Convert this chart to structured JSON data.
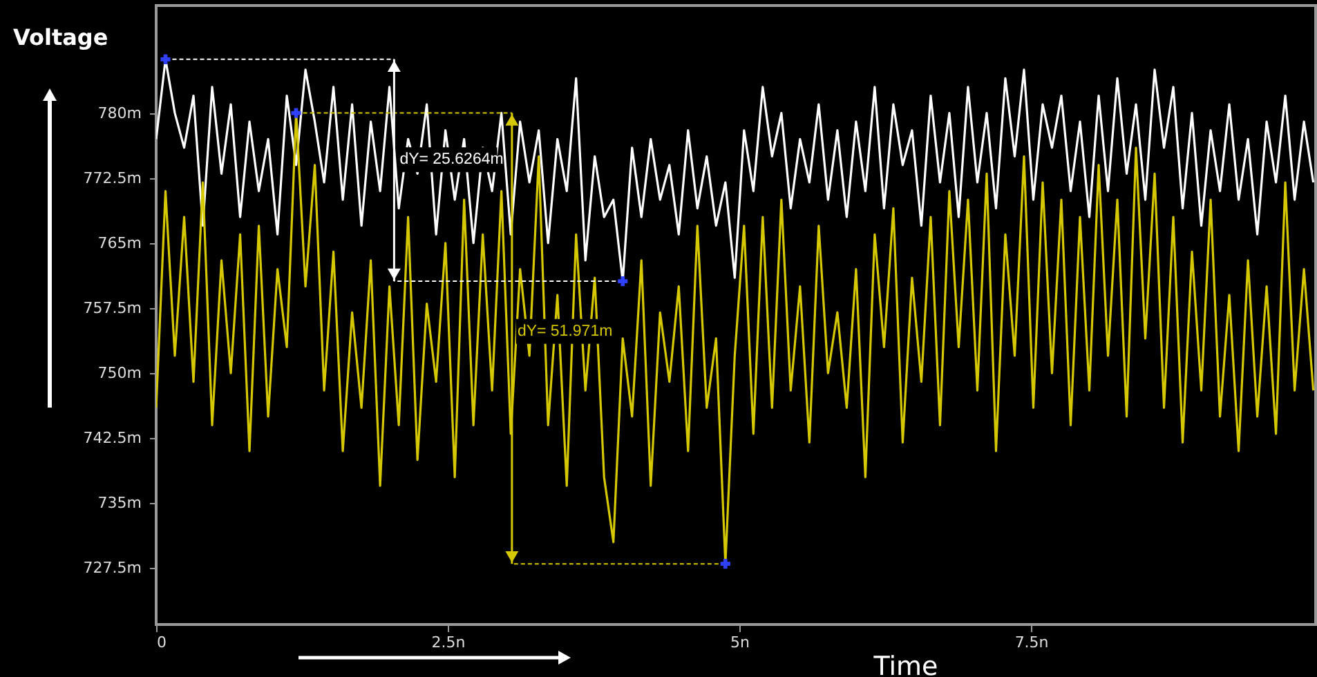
{
  "chart_data": {
    "type": "line",
    "xlabel": "Time",
    "ylabel": "Voltage",
    "x": [
      0,
      0.08,
      0.16,
      0.24,
      0.32,
      0.4,
      0.48,
      0.56,
      0.64,
      0.72,
      0.8,
      0.88,
      0.96,
      1.04,
      1.12,
      1.2,
      1.28,
      1.36,
      1.44,
      1.52,
      1.6,
      1.68,
      1.76,
      1.84,
      1.92,
      2,
      2.08,
      2.16,
      2.24,
      2.32,
      2.4,
      2.48,
      2.56,
      2.64,
      2.72,
      2.8,
      2.88,
      2.96,
      3.04,
      3.12,
      3.2,
      3.28,
      3.36,
      3.44,
      3.52,
      3.6,
      3.68,
      3.76,
      3.84,
      3.92,
      4,
      4.08,
      4.16,
      4.24,
      4.32,
      4.4,
      4.48,
      4.56,
      4.64,
      4.72,
      4.8,
      4.88,
      4.96,
      5.04,
      5.12,
      5.2,
      5.28,
      5.36,
      5.44,
      5.52,
      5.6,
      5.68,
      5.76,
      5.84,
      5.92,
      6,
      6.08,
      6.16,
      6.24,
      6.32,
      6.4,
      6.48,
      6.56,
      6.64,
      6.72,
      6.8,
      6.88,
      6.96,
      7.04,
      7.12,
      7.2,
      7.28,
      7.36,
      7.44,
      7.52,
      7.6,
      7.68,
      7.76,
      7.84,
      7.92,
      8,
      8.08,
      8.16,
      8.24,
      8.32,
      8.4,
      8.48,
      8.56,
      8.64,
      8.72,
      8.8,
      8.88,
      8.96,
      9.04,
      9.12,
      9.2,
      9.28,
      9.36,
      9.44,
      9.52,
      9.6,
      9.68,
      9.76,
      9.84,
      9.92
    ],
    "series": [
      {
        "color": "#ffffff",
        "values": [
          777,
          786.2,
          780,
          776,
          782,
          767,
          783,
          773,
          781,
          768,
          779,
          771,
          777,
          766,
          782,
          774,
          785,
          779,
          772,
          783,
          770,
          781,
          767,
          779,
          771,
          783,
          769,
          777,
          773,
          781,
          766,
          778,
          770,
          777,
          765,
          776,
          771,
          780,
          766,
          779,
          772,
          778,
          765,
          777,
          771,
          784,
          763,
          775,
          768,
          770,
          760.6,
          776,
          768,
          777,
          770,
          774,
          766,
          778,
          769,
          775,
          767,
          772,
          761,
          778,
          771,
          783,
          775,
          780,
          769,
          777,
          772,
          781,
          770,
          778,
          768,
          779,
          771,
          783,
          769,
          781,
          774,
          778,
          767,
          782,
          772,
          780,
          768,
          783,
          772,
          780,
          769,
          784,
          775,
          785,
          770,
          781,
          776,
          782,
          771,
          779,
          768,
          782,
          771,
          784,
          773,
          781,
          770,
          785,
          776,
          783,
          769,
          780,
          767,
          778,
          771,
          781,
          770,
          777,
          766,
          779,
          772,
          782,
          770,
          779,
          772
        ]
      },
      {
        "color": "#d6c800",
        "values": [
          746,
          771,
          752,
          768,
          749,
          772,
          744,
          763,
          750,
          766,
          741,
          767,
          745,
          762,
          753,
          780,
          760,
          774,
          748,
          764,
          741,
          757,
          746,
          763,
          737,
          760,
          744,
          768,
          740,
          758,
          749,
          765,
          738,
          770,
          744,
          766,
          748,
          771,
          743,
          762,
          752,
          775,
          744,
          759,
          737,
          766,
          748,
          761,
          738,
          730.5,
          754,
          745,
          763,
          737,
          757,
          749,
          760,
          741,
          767,
          746,
          754,
          728,
          752,
          767,
          743,
          768,
          746,
          770,
          748,
          760,
          742,
          767,
          750,
          757,
          746,
          762,
          738,
          766,
          753,
          769,
          742,
          761,
          749,
          768,
          744,
          771,
          753,
          770,
          748,
          773,
          741,
          766,
          752,
          775,
          746,
          772,
          750,
          770,
          744,
          768,
          748,
          774,
          752,
          770,
          745,
          776,
          754,
          773,
          746,
          768,
          742,
          764,
          748,
          770,
          745,
          759,
          741,
          763,
          745,
          760,
          743,
          772,
          748,
          762,
          748
        ]
      }
    ],
    "xlim": [
      0,
      9.94
    ],
    "ylim": [
      721,
      792.4
    ],
    "xticks": [
      0,
      {
        "value": 2.5,
        "label": "2.5n"
      },
      {
        "value": 5,
        "label": "5n"
      },
      {
        "value": 7.5,
        "label": "7.5n"
      }
    ],
    "yticks": [
      {
        "value": 727.5,
        "label": "727.5m"
      },
      {
        "value": 735,
        "label": "735m"
      },
      {
        "value": 742.5,
        "label": "742.5m"
      },
      {
        "value": 750,
        "label": "750m"
      },
      {
        "value": 757.5,
        "label": "757.5m"
      },
      {
        "value": 765,
        "label": "765m"
      },
      {
        "value": 772.5,
        "label": "772.5m"
      },
      {
        "value": 780,
        "label": "780m"
      }
    ],
    "annotations": [
      {
        "text": "dY= 25.6264m",
        "x": 2.04,
        "y": 774.6
      },
      {
        "text": "dY= 51.971m",
        "x": 3.05,
        "y": 754.8
      }
    ],
    "grid": false,
    "marker": "none",
    "line_style": "solid"
  }
}
